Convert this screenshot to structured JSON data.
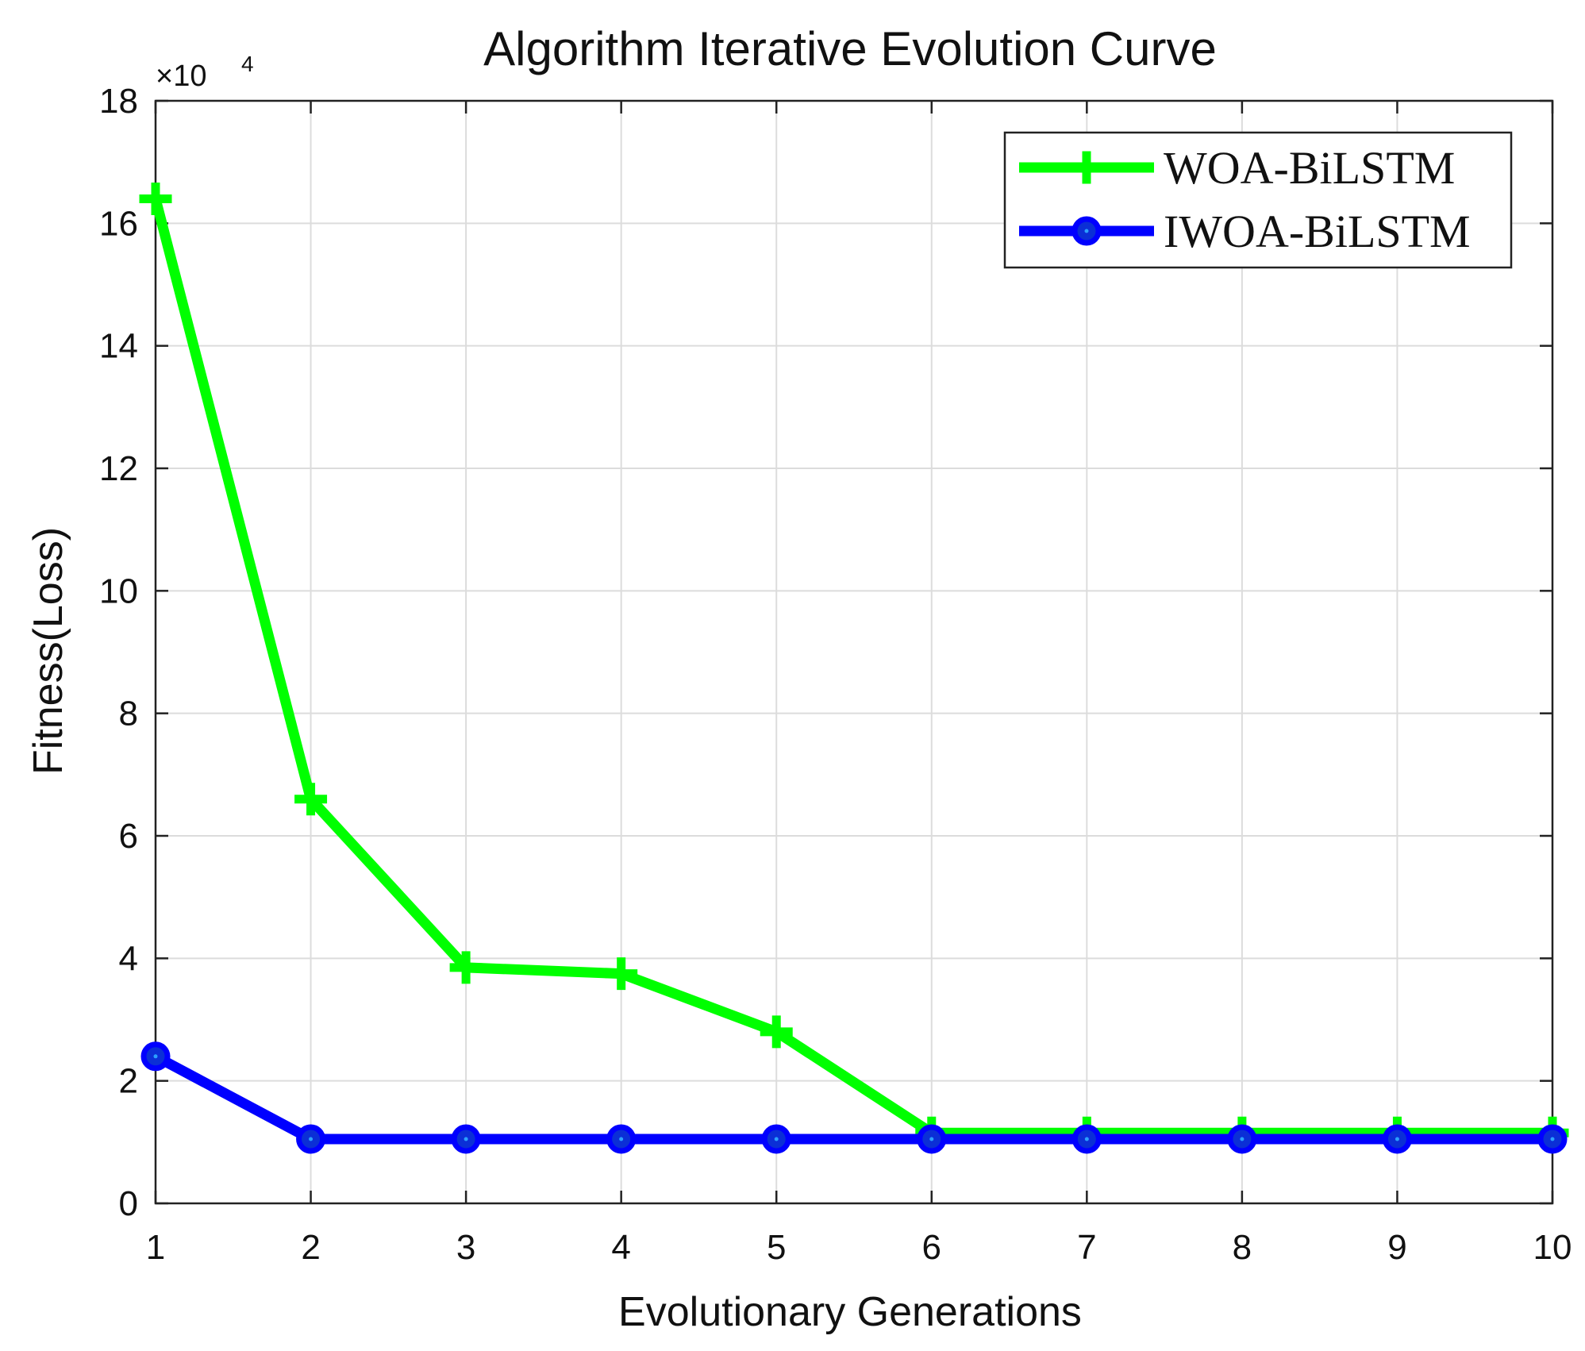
{
  "chart_data": {
    "type": "line",
    "title": "Algorithm Iterative Evolution Curve",
    "xlabel": "Evolutionary Generations",
    "ylabel": "Fitness(Loss)",
    "y_exponent_base": "×10",
    "y_exponent_power": "4",
    "x": [
      1,
      2,
      3,
      4,
      5,
      6,
      7,
      8,
      9,
      10
    ],
    "xlim": [
      1,
      10
    ],
    "ylim": [
      0,
      18
    ],
    "xticks": [
      1,
      2,
      3,
      4,
      5,
      6,
      7,
      8,
      9,
      10
    ],
    "yticks": [
      0,
      2,
      4,
      6,
      8,
      10,
      12,
      14,
      16,
      18
    ],
    "grid": true,
    "legend_position": "top-right",
    "series": [
      {
        "name": "WOA-BiLSTM",
        "color": "#00ff00",
        "marker": "plus",
        "values": [
          16.4,
          6.6,
          3.85,
          3.75,
          2.8,
          1.15,
          1.15,
          1.15,
          1.15,
          1.15
        ]
      },
      {
        "name": "IWOA-BiLSTM",
        "color": "#0000ff",
        "marker": "circle",
        "values": [
          2.4,
          1.05,
          1.05,
          1.05,
          1.05,
          1.05,
          1.05,
          1.05,
          1.05,
          1.05
        ]
      }
    ]
  }
}
